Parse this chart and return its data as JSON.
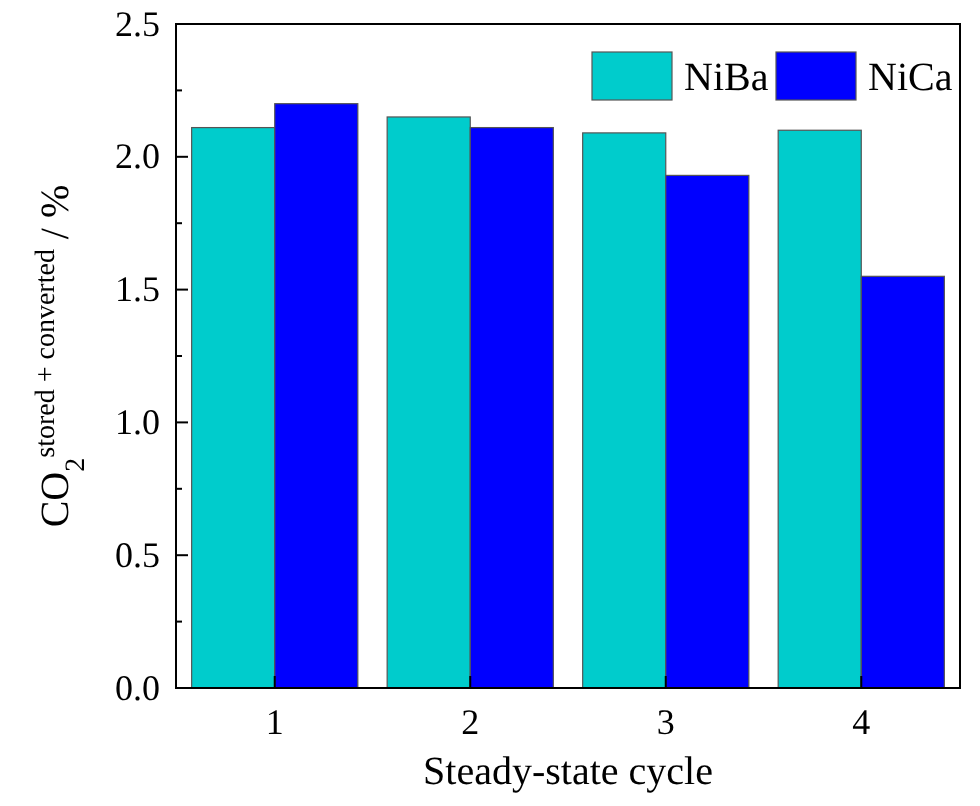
{
  "chart_data": {
    "type": "bar",
    "xlabel": "Steady-state cycle",
    "ylabel": "CO$_{2}$$^{stored + converted}$ / %",
    "categories": [
      "1",
      "2",
      "3",
      "4"
    ],
    "series": [
      {
        "name": "NiBa",
        "color": "#00cccc",
        "values": [
          2.11,
          2.15,
          2.09,
          2.1
        ]
      },
      {
        "name": "NiCa",
        "color": "#0000ff",
        "values": [
          2.2,
          2.11,
          1.93,
          1.55
        ]
      }
    ],
    "ylim": [
      0,
      2.5
    ],
    "yticks": [
      {
        "value": 0,
        "label": "0.0"
      },
      {
        "value": 0.25,
        "label": null
      },
      {
        "value": 0.5,
        "label": "0.5"
      },
      {
        "value": 0.75,
        "label": null
      },
      {
        "value": 1,
        "label": "1.0"
      },
      {
        "value": 1.25,
        "label": null
      },
      {
        "value": 1.5,
        "label": "1.5"
      },
      {
        "value": 1.75,
        "label": null
      },
      {
        "value": 2,
        "label": "2.0"
      },
      {
        "value": 2.25,
        "label": null
      },
      {
        "value": 2.5,
        "label": "2.5"
      }
    ],
    "legend": "top right",
    "grid": false
  }
}
